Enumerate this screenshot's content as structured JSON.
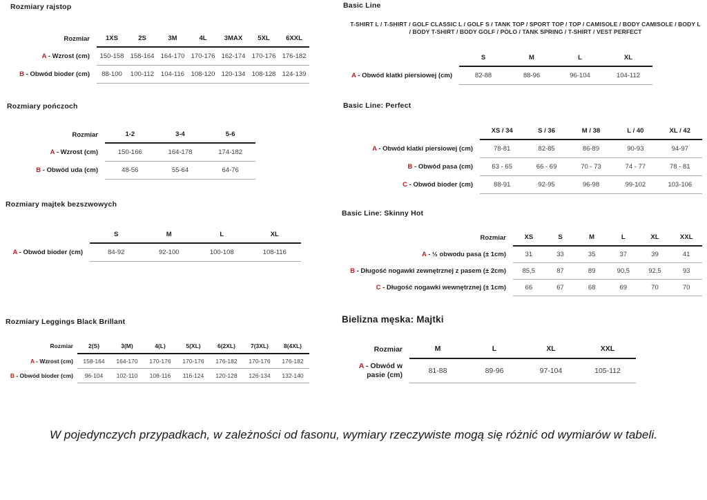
{
  "accent_color": "#bb1a21",
  "sections": {
    "rajstop": {
      "title": "Rozmiary rajstop",
      "table": {
        "corner_label": "Rozmiar",
        "columns": [
          "1XS",
          "2S",
          "3M",
          "4L",
          "3MAX",
          "5XL",
          "6XXL"
        ],
        "rows": [
          {
            "letter": "A",
            "label": "Wzrost (cm)",
            "values": [
              "150-158",
              "158-164",
              "164-170",
              "170-176",
              "162-174",
              "170-176",
              "176-182"
            ]
          },
          {
            "letter": "B",
            "label": "Obwód bioder (cm)",
            "values": [
              "88-100",
              "100-112",
              "104-116",
              "108-120",
              "120-134",
              "108-128",
              "124-139"
            ]
          }
        ]
      }
    },
    "ponczochy": {
      "title": "Rozmiary pończoch",
      "table": {
        "corner_label": "Rozmiar",
        "columns": [
          "1-2",
          "3-4",
          "5-6"
        ],
        "rows": [
          {
            "letter": "A",
            "label": "Wzrost (cm)",
            "values": [
              "150-166",
              "164-178",
              "174-182"
            ]
          },
          {
            "letter": "B",
            "label": "Obwód uda (cm)",
            "values": [
              "48-56",
              "55-64",
              "64-76"
            ]
          }
        ]
      }
    },
    "majtki_bezszwowe": {
      "title": "Rozmiary majtek bezszwowych",
      "table": {
        "corner_label": "",
        "columns": [
          "S",
          "M",
          "L",
          "XL"
        ],
        "rows": [
          {
            "letter": "A",
            "label": "Obwód bioder (cm)",
            "values": [
              "84-92",
              "92-100",
              "100-108",
              "108-116"
            ]
          }
        ]
      }
    },
    "leggings": {
      "title": "Rozmiary Leggings Black Brillant",
      "table": {
        "corner_label": "Rozmiar",
        "columns": [
          "2(S)",
          "3(M)",
          "4(L)",
          "5(XL)",
          "6(2XL)",
          "7(3XL)",
          "8(4XL)"
        ],
        "rows": [
          {
            "letter": "A",
            "label": "Wzrost (cm)",
            "values": [
              "158-164",
              "164-170",
              "170-176",
              "170-176",
              "176-182",
              "170-176",
              "176-182"
            ]
          },
          {
            "letter": "B",
            "label": "Obwód bioder (cm)",
            "values": [
              "96-104",
              "102-110",
              "108-116",
              "116-124",
              "120-128",
              "126-134",
              "132-140"
            ]
          }
        ]
      }
    },
    "basic_line": {
      "title": "Basic Line",
      "subtitle": "T-SHIRT L / T-SHIRT / GOLF CLASSIC L / GOLF S / TANK TOP / SPORT TOP / TOP / CAMISOLE / BODY CAMISOLE / BODY L / BODY T-SHIRT / BODY GOLF / POLO / TANK SPRING / T-SHIRT / VEST PERFECT",
      "table": {
        "corner_label": "",
        "columns": [
          "S",
          "M",
          "L",
          "XL"
        ],
        "rows": [
          {
            "letter": "A",
            "label": "Obwód klatki piersiowej (cm)",
            "values": [
              "82-88",
              "88-96",
              "96-104",
              "104-112"
            ]
          }
        ]
      }
    },
    "basic_perfect": {
      "title": "Basic Line: Perfect",
      "table": {
        "corner_label": "",
        "columns": [
          "XS / 34",
          "S / 36",
          "M / 38",
          "L / 40",
          "XL / 42"
        ],
        "rows": [
          {
            "letter": "A",
            "label": "Obwód klatki piersiowej (cm)",
            "values": [
              "78-81",
              "82-85",
              "86-89",
              "90-93",
              "94-97"
            ]
          },
          {
            "letter": "B",
            "label": "Obwód pasa (cm)",
            "values": [
              "63 - 65",
              "66 - 69",
              "70 - 73",
              "74 - 77",
              "78 - 81"
            ]
          },
          {
            "letter": "C",
            "label": "Obwód bioder (cm)",
            "values": [
              "88-91",
              "92-95",
              "96-98",
              "99-102",
              "103-106"
            ]
          }
        ]
      }
    },
    "skinny_hot": {
      "title": "Basic Line: Skinny Hot",
      "table": {
        "corner_label": "Rozmiar",
        "columns": [
          "XS",
          "S",
          "M",
          "L",
          "XL",
          "XXL"
        ],
        "rows": [
          {
            "letter": "A",
            "label": "½ obwodu pasa (± 1cm)",
            "values": [
              "31",
              "33",
              "35",
              "37",
              "39",
              "41"
            ]
          },
          {
            "letter": "B",
            "label": "Długość nogawki zewnętrznej z pasem (± 2cm)",
            "values": [
              "85,5",
              "87",
              "89",
              "90,5",
              "92,5",
              "93"
            ]
          },
          {
            "letter": "C",
            "label": "Długość nogawki wewnętrznej (± 1cm)",
            "values": [
              "66",
              "67",
              "68",
              "69",
              "70",
              "70"
            ]
          }
        ]
      }
    },
    "bielizna_meska": {
      "title": "Bielizna męska: Majtki",
      "table": {
        "corner_label": "Rozmiar",
        "columns": [
          "M",
          "L",
          "XL",
          "XXL"
        ],
        "rows": [
          {
            "letter": "A",
            "label": "Obwód w pasie (cm)",
            "values": [
              "81-88",
              "89-96",
              "97-104",
              "105-112"
            ]
          }
        ]
      }
    }
  },
  "footnote": "W pojedynczych przypadkach, w zależności od fasonu, wymiary rzeczywiste mogą się różnić od wymiarów w tabeli."
}
